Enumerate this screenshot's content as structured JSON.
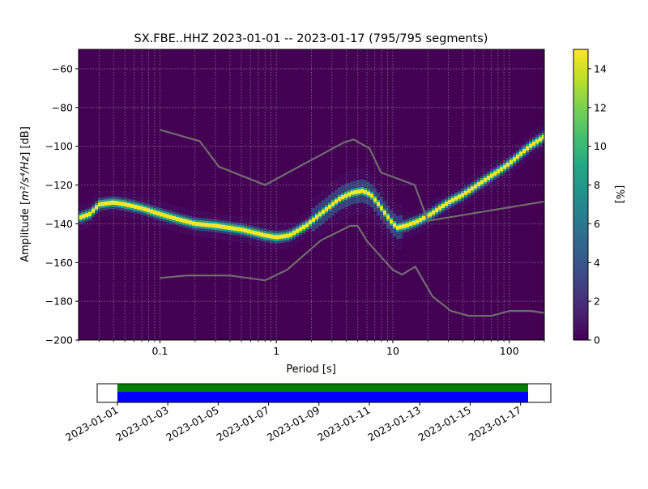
{
  "chart_data": [
    {
      "type": "heatmap",
      "title": "SX.FBE..HHZ   2023-01-01 -- 2023-01-17  (795/795 segments)",
      "xlabel": "Period [s]",
      "ylabel_main": "Amplitude [",
      "ylabel_unit": "m²/s⁴/Hz",
      "ylabel_tail": "] [dB]",
      "x_scale": "log",
      "xlim": [
        0.02,
        200
      ],
      "ylim": [
        -200,
        -50
      ],
      "x_ticks": [
        0.1,
        1,
        10,
        100
      ],
      "x_tick_labels": [
        "0.1",
        "1",
        "10",
        "100"
      ],
      "y_ticks": [
        -200,
        -180,
        -160,
        -140,
        -120,
        -100,
        -80,
        -60
      ],
      "y_tick_labels": [
        "−200",
        "−180",
        "−160",
        "−140",
        "−120",
        "−100",
        "−80",
        "−60"
      ],
      "grid": true,
      "colormap": "viridis",
      "colorbar": {
        "label": "[%]",
        "range": [
          0,
          15
        ],
        "ticks": [
          0,
          2,
          4,
          6,
          8,
          10,
          12,
          14
        ],
        "tick_labels": [
          "0",
          "2",
          "4",
          "6",
          "8",
          "10",
          "12",
          "14"
        ]
      },
      "psd_mode_curve": [
        [
          0.02,
          -137
        ],
        [
          0.025,
          -135
        ],
        [
          0.03,
          -130
        ],
        [
          0.04,
          -129
        ],
        [
          0.05,
          -130
        ],
        [
          0.07,
          -132
        ],
        [
          0.1,
          -135
        ],
        [
          0.15,
          -138
        ],
        [
          0.2,
          -140
        ],
        [
          0.3,
          -141
        ],
        [
          0.5,
          -143
        ],
        [
          0.8,
          -146
        ],
        [
          1.0,
          -147
        ],
        [
          1.3,
          -146
        ],
        [
          1.8,
          -141
        ],
        [
          2.5,
          -134
        ],
        [
          3.5,
          -127
        ],
        [
          4.5,
          -124
        ],
        [
          5.5,
          -123
        ],
        [
          6.5,
          -125
        ],
        [
          8,
          -132
        ],
        [
          10,
          -140
        ],
        [
          11,
          -142
        ],
        [
          13,
          -141
        ],
        [
          16,
          -139
        ],
        [
          20,
          -136
        ],
        [
          30,
          -129
        ],
        [
          40,
          -125
        ],
        [
          60,
          -118
        ],
        [
          80,
          -113
        ],
        [
          100,
          -109
        ],
        [
          150,
          -100
        ],
        [
          200,
          -95
        ]
      ],
      "nhnm": [
        [
          0.1,
          -91.5
        ],
        [
          0.22,
          -97.4
        ],
        [
          0.32,
          -110.5
        ],
        [
          0.8,
          -120
        ],
        [
          3.8,
          -98
        ],
        [
          4.6,
          -96.5
        ],
        [
          6.3,
          -101
        ],
        [
          7.9,
          -113.5
        ],
        [
          15.4,
          -120
        ],
        [
          20,
          -138.5
        ],
        [
          200,
          -128.5
        ]
      ],
      "nlnm": [
        [
          0.1,
          -168
        ],
        [
          0.17,
          -166.7
        ],
        [
          0.4,
          -166.7
        ],
        [
          0.8,
          -169.2
        ],
        [
          1.24,
          -163.7
        ],
        [
          2.4,
          -148.6
        ],
        [
          4.3,
          -141.1
        ],
        [
          5,
          -141.1
        ],
        [
          6,
          -149
        ],
        [
          10,
          -163.8
        ],
        [
          12,
          -166.2
        ],
        [
          15.6,
          -162.1
        ],
        [
          21.9,
          -177.5
        ],
        [
          31.6,
          -185
        ],
        [
          45,
          -187.5
        ],
        [
          70,
          -187.5
        ],
        [
          101,
          -185
        ],
        [
          154,
          -185
        ],
        [
          200,
          -186
        ]
      ]
    },
    {
      "type": "timeline",
      "range": [
        "2023-01-01",
        "2023-01-18"
      ],
      "tick_labels": [
        "2023-01-01",
        "2023-01-03",
        "2023-01-05",
        "2023-01-07",
        "2023-01-09",
        "2023-01-11",
        "2023-01-13",
        "2023-01-15",
        "2023-01-17"
      ],
      "tick_days": [
        0,
        2,
        4,
        6,
        8,
        10,
        12,
        14,
        16
      ],
      "coverage": [
        {
          "name": "",
          "start_day": 0.8,
          "end_day": 17.1,
          "color": "#008000"
        },
        {
          "name": "",
          "start_day": 0.8,
          "end_day": 17.1,
          "color": "#0000ff"
        }
      ]
    }
  ]
}
